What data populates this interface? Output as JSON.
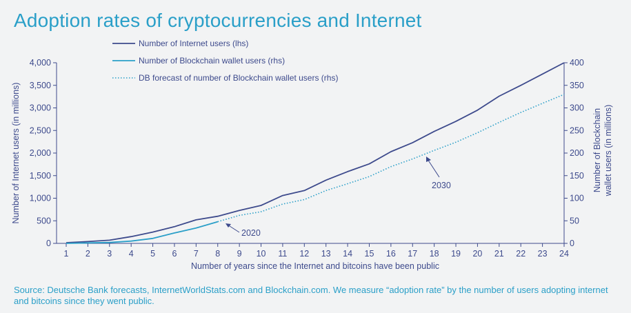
{
  "title": "Adoption rates of cryptocurrencies and Internet",
  "source": "Source: Deutsche Bank forecasts, InternetWorldStats.com and Blockchain.com. We measure “adoption rate” by the number of users adopting internet and bitcoins since they went public.",
  "colors": {
    "background": "#f2f3f4",
    "internet": "#3d4a8c",
    "blockchain": "#2a9fc8",
    "forecast": "#2a9fc8",
    "axis": "#3d4a8c",
    "title": "#2a9fc8"
  },
  "chart_data": {
    "type": "line",
    "title": "Adoption rates of cryptocurrencies and Internet",
    "xlabel": "Number of years since the Internet and bitcoins have been public",
    "ylabel_left": "Number of Internet users (in millions)",
    "ylabel_right_lines": [
      "Number of Blockchain",
      "wallet users (in millions)"
    ],
    "x": [
      1,
      2,
      3,
      4,
      5,
      6,
      7,
      8,
      9,
      10,
      11,
      12,
      13,
      14,
      15,
      16,
      17,
      18,
      19,
      20,
      21,
      22,
      23,
      24
    ],
    "y_left_ticks": [
      "0",
      "500",
      "1,000",
      "1,500",
      "2,000",
      "2,500",
      "3,000",
      "3,500",
      "4,000"
    ],
    "y_left_lim": [
      0,
      4000
    ],
    "y_right_ticks": [
      "0",
      "50",
      "100",
      "150",
      "200",
      "250",
      "300",
      "350",
      "400"
    ],
    "y_right_lim": [
      0,
      400
    ],
    "legend_position": "top-left",
    "grid": false,
    "series": [
      {
        "name": "Number of Internet users (lhs)",
        "axis": "left",
        "style": "solid",
        "x": [
          1,
          2,
          3,
          4,
          5,
          6,
          7,
          8,
          9,
          10,
          11,
          12,
          13,
          14,
          15,
          16,
          17,
          18,
          19,
          20,
          21,
          22,
          23,
          24
        ],
        "values": [
          16,
          40,
          70,
          150,
          250,
          370,
          520,
          600,
          730,
          840,
          1060,
          1170,
          1400,
          1590,
          1760,
          2030,
          2230,
          2480,
          2700,
          2950,
          3260,
          3500,
          3750,
          4000
        ]
      },
      {
        "name": "Number of Blockchain wallet users (rhs)",
        "axis": "right",
        "style": "solid",
        "x": [
          1,
          2,
          3,
          4,
          5,
          6,
          7,
          8
        ],
        "values": [
          0,
          1,
          2,
          5,
          11,
          23,
          34,
          48
        ]
      },
      {
        "name": "DB forecast of number of Blockchain wallet users (rhs)",
        "axis": "right",
        "style": "dotted",
        "x": [
          8,
          9,
          10,
          11,
          12,
          13,
          14,
          15,
          16,
          17,
          18,
          19,
          20,
          21,
          22,
          23,
          24
        ],
        "values": [
          48,
          62,
          70,
          87,
          97,
          117,
          132,
          148,
          170,
          187,
          206,
          224,
          245,
          268,
          290,
          310,
          330
        ]
      }
    ],
    "annotations": [
      {
        "text": "2020",
        "x": 8,
        "series": "Number of Blockchain wallet users (rhs)"
      },
      {
        "text": "2030",
        "x": 18,
        "series": "DB forecast of number of Blockchain wallet users (rhs)"
      }
    ]
  }
}
